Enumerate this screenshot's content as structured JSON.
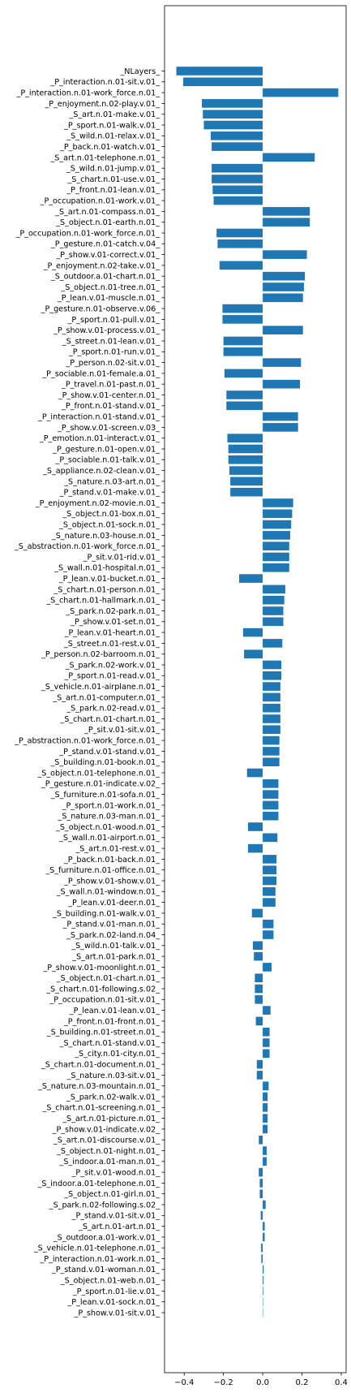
{
  "chart_data": {
    "type": "bar",
    "orientation": "horizontal",
    "title": "",
    "xlabel": "",
    "ylabel": "",
    "xlim": [
      -0.5,
      0.425
    ],
    "xticks": [
      -0.4,
      -0.2,
      0.0,
      0.2,
      0.4
    ],
    "xtick_labels": [
      "−0.4",
      "−0.2",
      "0.0",
      "0.2",
      "0.4"
    ],
    "grid": false,
    "legend": "none",
    "bar_color": "#1f77b4",
    "categories": [
      "_NLayers_",
      "_P_interaction.n.01-sit.v.01_",
      "_P_interaction.n.01-work_force.n.01_",
      "_P_enjoyment.n.02-play.v.01_",
      "_S_art.n.01-make.v.01_",
      "_P_sport.n.01-walk.v.01_",
      "_S_wild.n.01-relax.v.01_",
      "_P_back.n.01-watch.v.01_",
      "_S_art.n.01-telephone.n.01_",
      "_S_wild.n.01-jump.v.01_",
      "_S_chart.n.01-use.v.01_",
      "_P_front.n.01-lean.v.01_",
      "_P_occupation.n.01-work.v.01_",
      "_S_art.n.01-compass.n.01_",
      "_S_object.n.01-earth.n.01_",
      "_P_occupation.n.01-work_force.n.01_",
      "_P_gesture.n.01-catch.v.04_",
      "_P_show.v.01-correct.v.01_",
      "_P_enjoyment.n.02-take.v.01_",
      "_S_outdoor.a.01-chart.n.01_",
      "_S_object.n.01-tree.n.01_",
      "_P_lean.v.01-muscle.n.01_",
      "_P_gesture.n.01-observe.v.06_",
      "_P_sport.n.01-pull.v.01_",
      "_P_show.v.01-process.v.01_",
      "_S_street.n.01-lean.v.01_",
      "_P_sport.n.01-run.v.01_",
      "_P_person.n.02-sit.v.01_",
      "_P_sociable.n.01-female.a.01_",
      "_P_travel.n.01-past.n.01_",
      "_P_show.v.01-center.n.01_",
      "_P_front.n.01-stand.v.01_",
      "_P_interaction.n.01-stand.v.01_",
      "_P_show.v.01-screen.v.03_",
      "_P_emotion.n.01-interact.v.01_",
      "_P_gesture.n.01-open.v.01_",
      "_P_sociable.n.01-talk.v.01_",
      "_S_appliance.n.02-clean.v.01_",
      "_S_nature.n.03-art.n.01_",
      "_P_stand.v.01-make.v.01_",
      "_P_enjoyment.n.02-movie.n.01_",
      "_S_object.n.01-box.n.01_",
      "_S_object.n.01-sock.n.01_",
      "_S_nature.n.03-house.n.01_",
      "_S_abstraction.n.01-work_force.n.01_",
      "_P_sit.v.01-rid.v.01_",
      "_S_wall.n.01-hospital.n.01_",
      "_P_lean.v.01-bucket.n.01_",
      "_S_chart.n.01-person.n.01_",
      "_S_chart.n.01-hallmark.n.01_",
      "_S_park.n.02-park.n.01_",
      "_P_show.v.01-set.n.01_",
      "_P_lean.v.01-heart.n.01_",
      "_S_street.n.01-rest.v.01_",
      "_P_person.n.02-barroom.n.01_",
      "_S_park.n.02-work.v.01_",
      "_P_sport.n.01-read.v.01_",
      "_S_vehicle.n.01-airplane.n.01_",
      "_S_art.n.01-computer.n.01_",
      "_S_park.n.02-read.v.01_",
      "_S_chart.n.01-chart.n.01_",
      "_P_sit.v.01-sit.v.01_",
      "_P_abstraction.n.01-work_force.n.01_",
      "_P_stand.v.01-stand.v.01_",
      "_S_building.n.01-book.n.01_",
      "_S_object.n.01-telephone.n.01_",
      "_P_gesture.n.01-indicate.v.02_",
      "_S_furniture.n.01-sofa.n.01_",
      "_P_sport.n.01-work.n.01_",
      "_S_nature.n.03-man.n.01_",
      "_S_object.n.01-wood.n.01_",
      "_S_wall.n.01-airport.n.01_",
      "_S_art.n.01-rest.v.01_",
      "_P_back.n.01-back.n.01_",
      "_S_furniture.n.01-office.n.01_",
      "_P_show.v.01-show.v.01_",
      "_S_wall.n.01-window.n.01_",
      "_P_lean.v.01-deer.n.01_",
      "_S_building.n.01-walk.v.01_",
      "_P_stand.v.01-man.n.01_",
      "_S_park.n.02-land.n.04_",
      "_S_wild.n.01-talk.v.01_",
      "_S_art.n.01-park.n.01_",
      "_P_show.v.01-moonlight.n.01_",
      "_S_object.n.01-chart.n.01_",
      "_S_chart.n.01-following.s.02_",
      "_P_occupation.n.01-sit.v.01_",
      "_P_lean.v.01-lean.v.01_",
      "_P_front.n.01-front.n.01_",
      "_S_building.n.01-street.n.01_",
      "_S_chart.n.01-stand.v.01_",
      "_S_city.n.01-city.n.01_",
      "_S_chart.n.01-document.n.01_",
      "_S_nature.n.03-sit.v.01_",
      "_S_nature.n.03-mountain.n.01_",
      "_S_park.n.02-walk.v.01_",
      "_S_chart.n.01-screening.n.01_",
      "_S_art.n.01-picture.n.01_",
      "_P_show.v.01-indicate.v.02_",
      "_S_art.n.01-discourse.v.01_",
      "_S_object.n.01-night.n.01_",
      "_S_indoor.a.01-man.n.01_",
      "_P_sit.v.01-wood.n.01_",
      "_S_indoor.a.01-telephone.n.01_",
      "_S_object.n.01-girl.n.01_",
      "_S_park.n.02-following.s.02_",
      "_P_stand.v.01-sit.v.01_",
      "_S_art.n.01-art.n.01_",
      "_S_outdoor.a.01-work.v.01_",
      "_S_vehicle.n.01-telephone.n.01_",
      "_P_interaction.n.01-work.n.01_",
      "_P_stand.v.01-woman.n.01_",
      "_S_object.n.01-web.n.01_",
      "_P_sport.n.01-lie.v.01_",
      "_P_lean.v.01-sock.n.01_",
      "_P_show.v.01-sit.v.01_"
    ],
    "values": [
      -0.44,
      -0.405,
      0.385,
      -0.31,
      -0.305,
      -0.3,
      -0.265,
      -0.26,
      0.265,
      -0.26,
      -0.26,
      -0.255,
      -0.25,
      0.24,
      0.24,
      -0.235,
      -0.23,
      0.225,
      -0.22,
      0.215,
      0.21,
      0.205,
      -0.205,
      -0.205,
      0.205,
      -0.2,
      -0.2,
      0.195,
      -0.195,
      0.19,
      -0.185,
      -0.185,
      0.18,
      0.18,
      -0.18,
      -0.175,
      -0.175,
      -0.17,
      -0.165,
      -0.165,
      0.155,
      0.15,
      0.145,
      0.14,
      0.135,
      0.135,
      0.135,
      -0.12,
      0.115,
      0.11,
      0.105,
      0.105,
      -0.1,
      0.1,
      -0.095,
      0.095,
      0.095,
      0.09,
      0.09,
      0.09,
      0.09,
      0.09,
      0.085,
      0.085,
      0.085,
      -0.08,
      0.08,
      0.08,
      0.08,
      0.08,
      -0.075,
      0.075,
      -0.075,
      0.07,
      0.07,
      0.07,
      0.065,
      0.065,
      -0.055,
      0.055,
      0.055,
      -0.05,
      -0.045,
      0.045,
      -0.04,
      -0.04,
      -0.04,
      0.04,
      -0.035,
      0.035,
      0.035,
      0.035,
      -0.03,
      -0.03,
      0.03,
      0.025,
      0.025,
      0.025,
      0.025,
      -0.02,
      0.02,
      0.02,
      -0.02,
      -0.015,
      -0.015,
      0.015,
      -0.01,
      0.01,
      0.01,
      -0.008,
      -0.007,
      0.005,
      0.004,
      0.003,
      0.002,
      0.0
    ]
  }
}
